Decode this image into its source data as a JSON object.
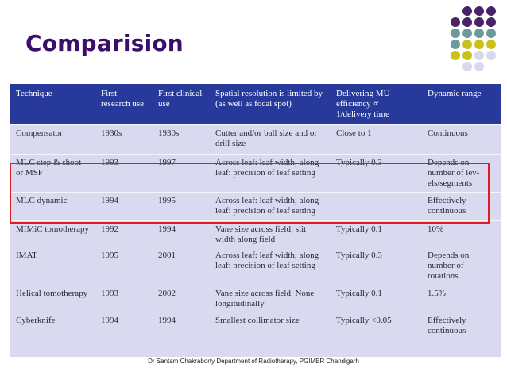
{
  "slide": {
    "title": "Comparision",
    "footer": "Dr Santam Chakraborty Department of Radiotherapy, PGIMER Chandigarh"
  },
  "colors": {
    "title": "#3a0f6b",
    "header_bg": "#273a9c",
    "table_bg": "#d9daf0",
    "highlight": "#e01b24",
    "dot_purple": "#4b2266",
    "dot_teal": "#6b9a9a",
    "dot_yellow": "#c9c21a",
    "dot_lavender": "#d9d9ee"
  },
  "table": {
    "headers": [
      "Technique",
      "First research use",
      "First clinical use",
      "Spatial resolution is limited by (as well as focal spot)",
      "Delivering MU efficiency ∝ 1/delivery time",
      "Dynamic range"
    ],
    "rows": [
      [
        "Compensator",
        "1930s",
        "1930s",
        "Cutter and/or ball size and or drill size",
        "Close to 1",
        "Continuous"
      ],
      [
        "MLC step & shoot or MSF",
        "1993",
        "1997",
        "Across leaf: leaf width; along leaf: precision of leaf setting",
        "Typically 0.3",
        "Depends on number of lev-els/segments"
      ],
      [
        "MLC dynamic",
        "1994",
        "1995",
        "Across leaf: leaf width; along leaf: precision of leaf setting",
        "",
        "Effectively continuous"
      ],
      [
        "MIMiC tomotherapy",
        "1992",
        "1994",
        "Vane size across field; slit width along field",
        "Typically 0.1",
        "10%"
      ],
      [
        "IMAT",
        "1995",
        "2001",
        "Across leaf: leaf width; along leaf: precision of leaf setting",
        "Typically 0.3",
        "Depends on number of rotations"
      ],
      [
        "Helical tomotherapy",
        "1993",
        "2002",
        "Vane size across field. None longitudinally",
        "Typically 0.1",
        "1.5%"
      ],
      [
        "Cyberknife",
        "1994",
        "1994",
        "Smallest collimator size",
        "Typically <0.05",
        "Effectively continuous"
      ]
    ]
  }
}
